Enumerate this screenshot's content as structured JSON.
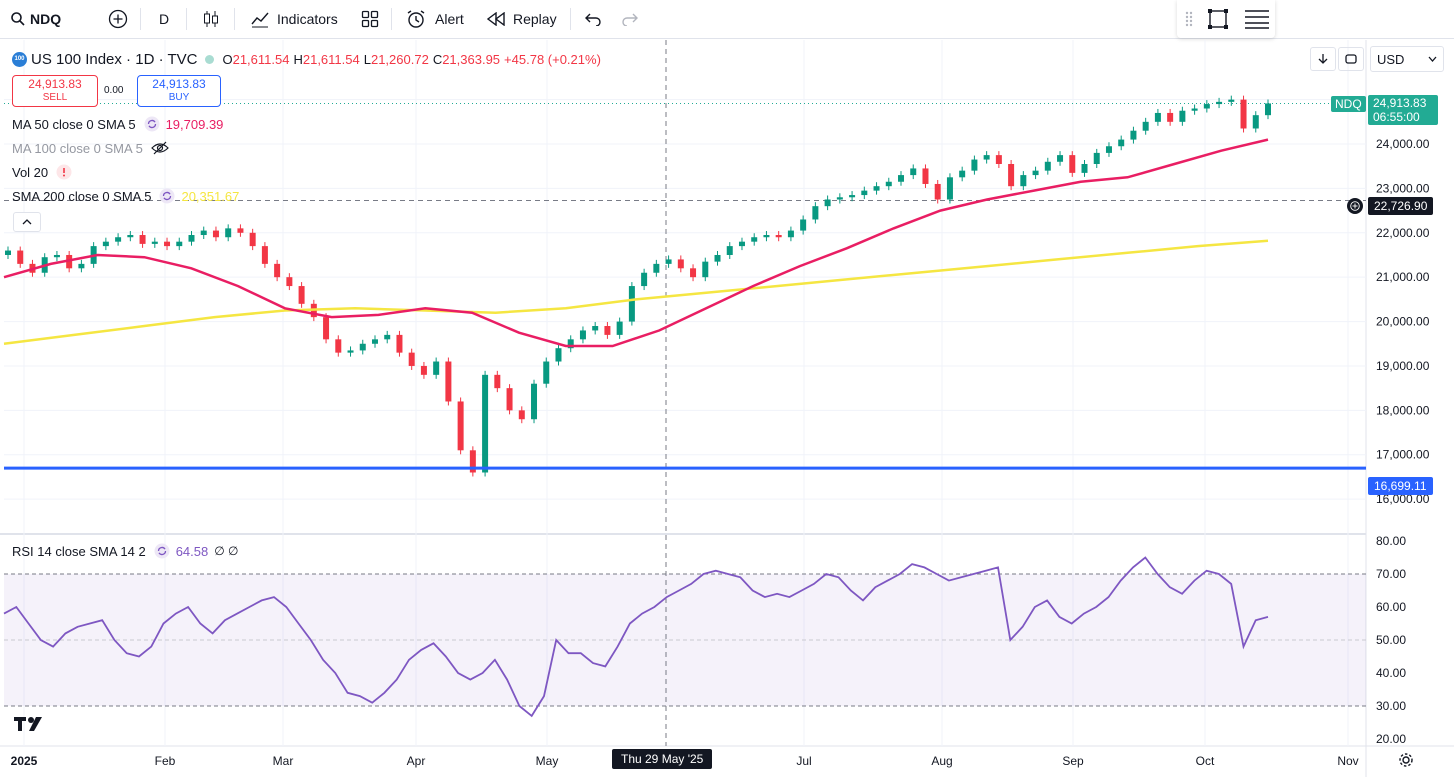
{
  "toolbar": {
    "symbol": "NDQ",
    "interval": "D",
    "indicators_label": "Indicators",
    "alert_label": "Alert",
    "replay_label": "Replay"
  },
  "legend": {
    "title": "US 100 Index · 1D · TVC",
    "badge": "100",
    "o_label": "O",
    "o": "21,611.54",
    "h_label": "H",
    "h": "21,611.54",
    "l_label": "L",
    "l": "21,260.72",
    "c_label": "C",
    "c": "21,363.95",
    "change": "+45.78 (+0.21%)"
  },
  "trade": {
    "sell_price": "24,913.83",
    "sell_label": "SELL",
    "spread": "0.00",
    "buy_price": "24,913.83",
    "buy_label": "BUY"
  },
  "indicators": {
    "ma50_label": "MA 50 close 0 SMA 5",
    "ma50_value": "19,709.39",
    "ma100_label": "MA 100 close 0 SMA 5",
    "vol_label": "Vol 20",
    "sma200_label": "SMA 200 close 0 SMA 5",
    "sma200_value": "20,351.67",
    "rsi_label": "RSI 14 close SMA 14 2",
    "rsi_value": "64.58",
    "rsi_extra": "∅ ∅"
  },
  "currency": "USD",
  "price_tag": {
    "symbol": "NDQ",
    "price": "24,913.83",
    "countdown": "06:55:00"
  },
  "crosshair": {
    "price": "22,726.90",
    "date": "Thu 29 May '25"
  },
  "hline_label": "16,699.11",
  "colors": {
    "up": "#089981",
    "down": "#f23645",
    "ma50": "#e91e63",
    "sma200": "#f5e642",
    "rsi": "#7e57c2",
    "hline": "#2962ff",
    "tag": "#22ab94"
  },
  "chart_data": [
    {
      "type": "candlestick",
      "title": "US 100 Index · 1D · TVC",
      "x_ticks": [
        "2025",
        "Feb",
        "Mar",
        "Apr",
        "May",
        "Jul",
        "Aug",
        "Sep",
        "Oct",
        "Nov"
      ],
      "y_ticks": [
        "16,000.00",
        "17,000.00",
        "18,000.00",
        "19,000.00",
        "20,000.00",
        "21,000.00",
        "22,000.00",
        "23,000.00",
        "24,000.00",
        "25,000.00"
      ],
      "ylim": [
        15800,
        25600
      ],
      "last_price": 24913.83,
      "horizontal_line": 16699.11,
      "close_series_approx": [
        21600,
        21300,
        21100,
        21450,
        21500,
        21200,
        21300,
        21700,
        21800,
        21900,
        21950,
        21750,
        21800,
        21700,
        21800,
        21950,
        22050,
        21900,
        22100,
        22000,
        21700,
        21300,
        21000,
        20800,
        20400,
        20100,
        19600,
        19300,
        19350,
        19500,
        19600,
        19700,
        19300,
        19000,
        18800,
        19100,
        18200,
        17100,
        16600,
        18800,
        18500,
        18000,
        17800,
        18600,
        19100,
        19400,
        19600,
        19800,
        19900,
        19700,
        20000,
        20800,
        21100,
        21300,
        21400,
        21200,
        21000,
        21350,
        21500,
        21700,
        21800,
        21900,
        21950,
        21900,
        22050,
        22300,
        22600,
        22750,
        22800,
        22850,
        22950,
        23050,
        23150,
        23300,
        23450,
        23100,
        22750,
        23250,
        23400,
        23650,
        23750,
        23550,
        23050,
        23300,
        23400,
        23600,
        23750,
        23350,
        23550,
        23800,
        23950,
        24100,
        24300,
        24500,
        24700,
        24500,
        24750,
        24800,
        24900,
        24950,
        25000,
        24350,
        24650,
        24913.83
      ],
      "ma50_approx": [
        21000,
        21300,
        21500,
        21450,
        21200,
        20800,
        20300,
        20100,
        20150,
        20300,
        20200,
        19750,
        19450,
        19450,
        19800,
        20300,
        20800,
        21250,
        21650,
        22100,
        22500,
        22750,
        22950,
        23150,
        23250,
        23550,
        23850,
        24100
      ],
      "sma200_approx": [
        19500,
        19700,
        19900,
        20100,
        20250,
        20300,
        20250,
        20200,
        20300,
        20500,
        20650,
        20800,
        20950,
        21100,
        21250,
        21400,
        21550,
        21700,
        21820
      ]
    },
    {
      "type": "line",
      "title": "RSI 14 close SMA 14 2",
      "ylim": [
        20,
        80
      ],
      "y_ticks": [
        "20.00",
        "30.00",
        "40.00",
        "50.00",
        "60.00",
        "70.00",
        "80.00"
      ],
      "upper_band": 70,
      "lower_band": 30,
      "last_value": 64.58,
      "values_approx": [
        58,
        60,
        55,
        50,
        48,
        52,
        54,
        55,
        56,
        50,
        46,
        45,
        48,
        55,
        58,
        60,
        55,
        52,
        56,
        58,
        60,
        62,
        63,
        60,
        55,
        50,
        44,
        40,
        34,
        33,
        31,
        34,
        38,
        44,
        47,
        49,
        45,
        40,
        38,
        40,
        44,
        38,
        30,
        27,
        33,
        50,
        46,
        46,
        43,
        42,
        48,
        55,
        58,
        60,
        63,
        65,
        67,
        70,
        71,
        70,
        69,
        65,
        63,
        64,
        63,
        65,
        67,
        70,
        69,
        65,
        62,
        66,
        68,
        70,
        73,
        72,
        70,
        68,
        69,
        70,
        71,
        72,
        50,
        54,
        60,
        62,
        57,
        55,
        58,
        60,
        63,
        68,
        72,
        75,
        70,
        66,
        64,
        68,
        71,
        70,
        67,
        48,
        56,
        57
      ]
    }
  ]
}
